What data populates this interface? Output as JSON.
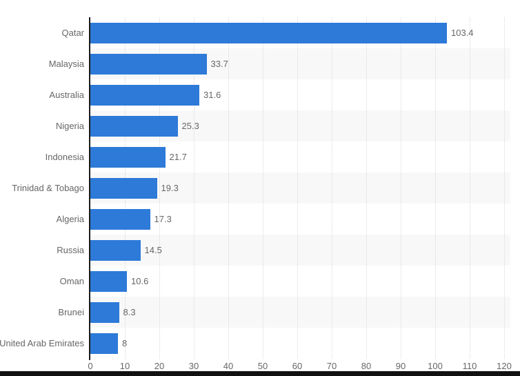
{
  "chart_data": {
    "type": "bar",
    "orientation": "horizontal",
    "title": "",
    "xlabel": "",
    "ylabel": "",
    "categories": [
      "Qatar",
      "Malaysia",
      "Australia",
      "Nigeria",
      "Indonesia",
      "Trinidad & Tobago",
      "Algeria",
      "Russia",
      "Oman",
      "Brunei",
      "United Arab Emirates"
    ],
    "values": [
      103.4,
      33.7,
      31.6,
      25.3,
      21.7,
      19.3,
      17.3,
      14.5,
      10.6,
      8.3,
      8
    ],
    "value_labels": [
      "103.4",
      "33.7",
      "31.6",
      "25.3",
      "21.7",
      "19.3",
      "17.3",
      "14.5",
      "10.6",
      "8.3",
      "8"
    ],
    "xlim": [
      0,
      120
    ],
    "x_tick_step": 10,
    "x_tick_labels": [
      "0",
      "10",
      "20",
      "30",
      "40",
      "50",
      "60",
      "70",
      "80",
      "90",
      "100",
      "110",
      "120"
    ],
    "grid": "vertical-dotted",
    "legend": "none",
    "alternating_row_bands": true,
    "colors": {
      "bar": "#2d7ad8",
      "gridline": "#d9d9d9",
      "axis_line": "#1a1a1a",
      "label_text": "#666666",
      "alt_band": "#f8f8f8",
      "background": "#ffffff",
      "bottom_strip": "#111111"
    }
  }
}
